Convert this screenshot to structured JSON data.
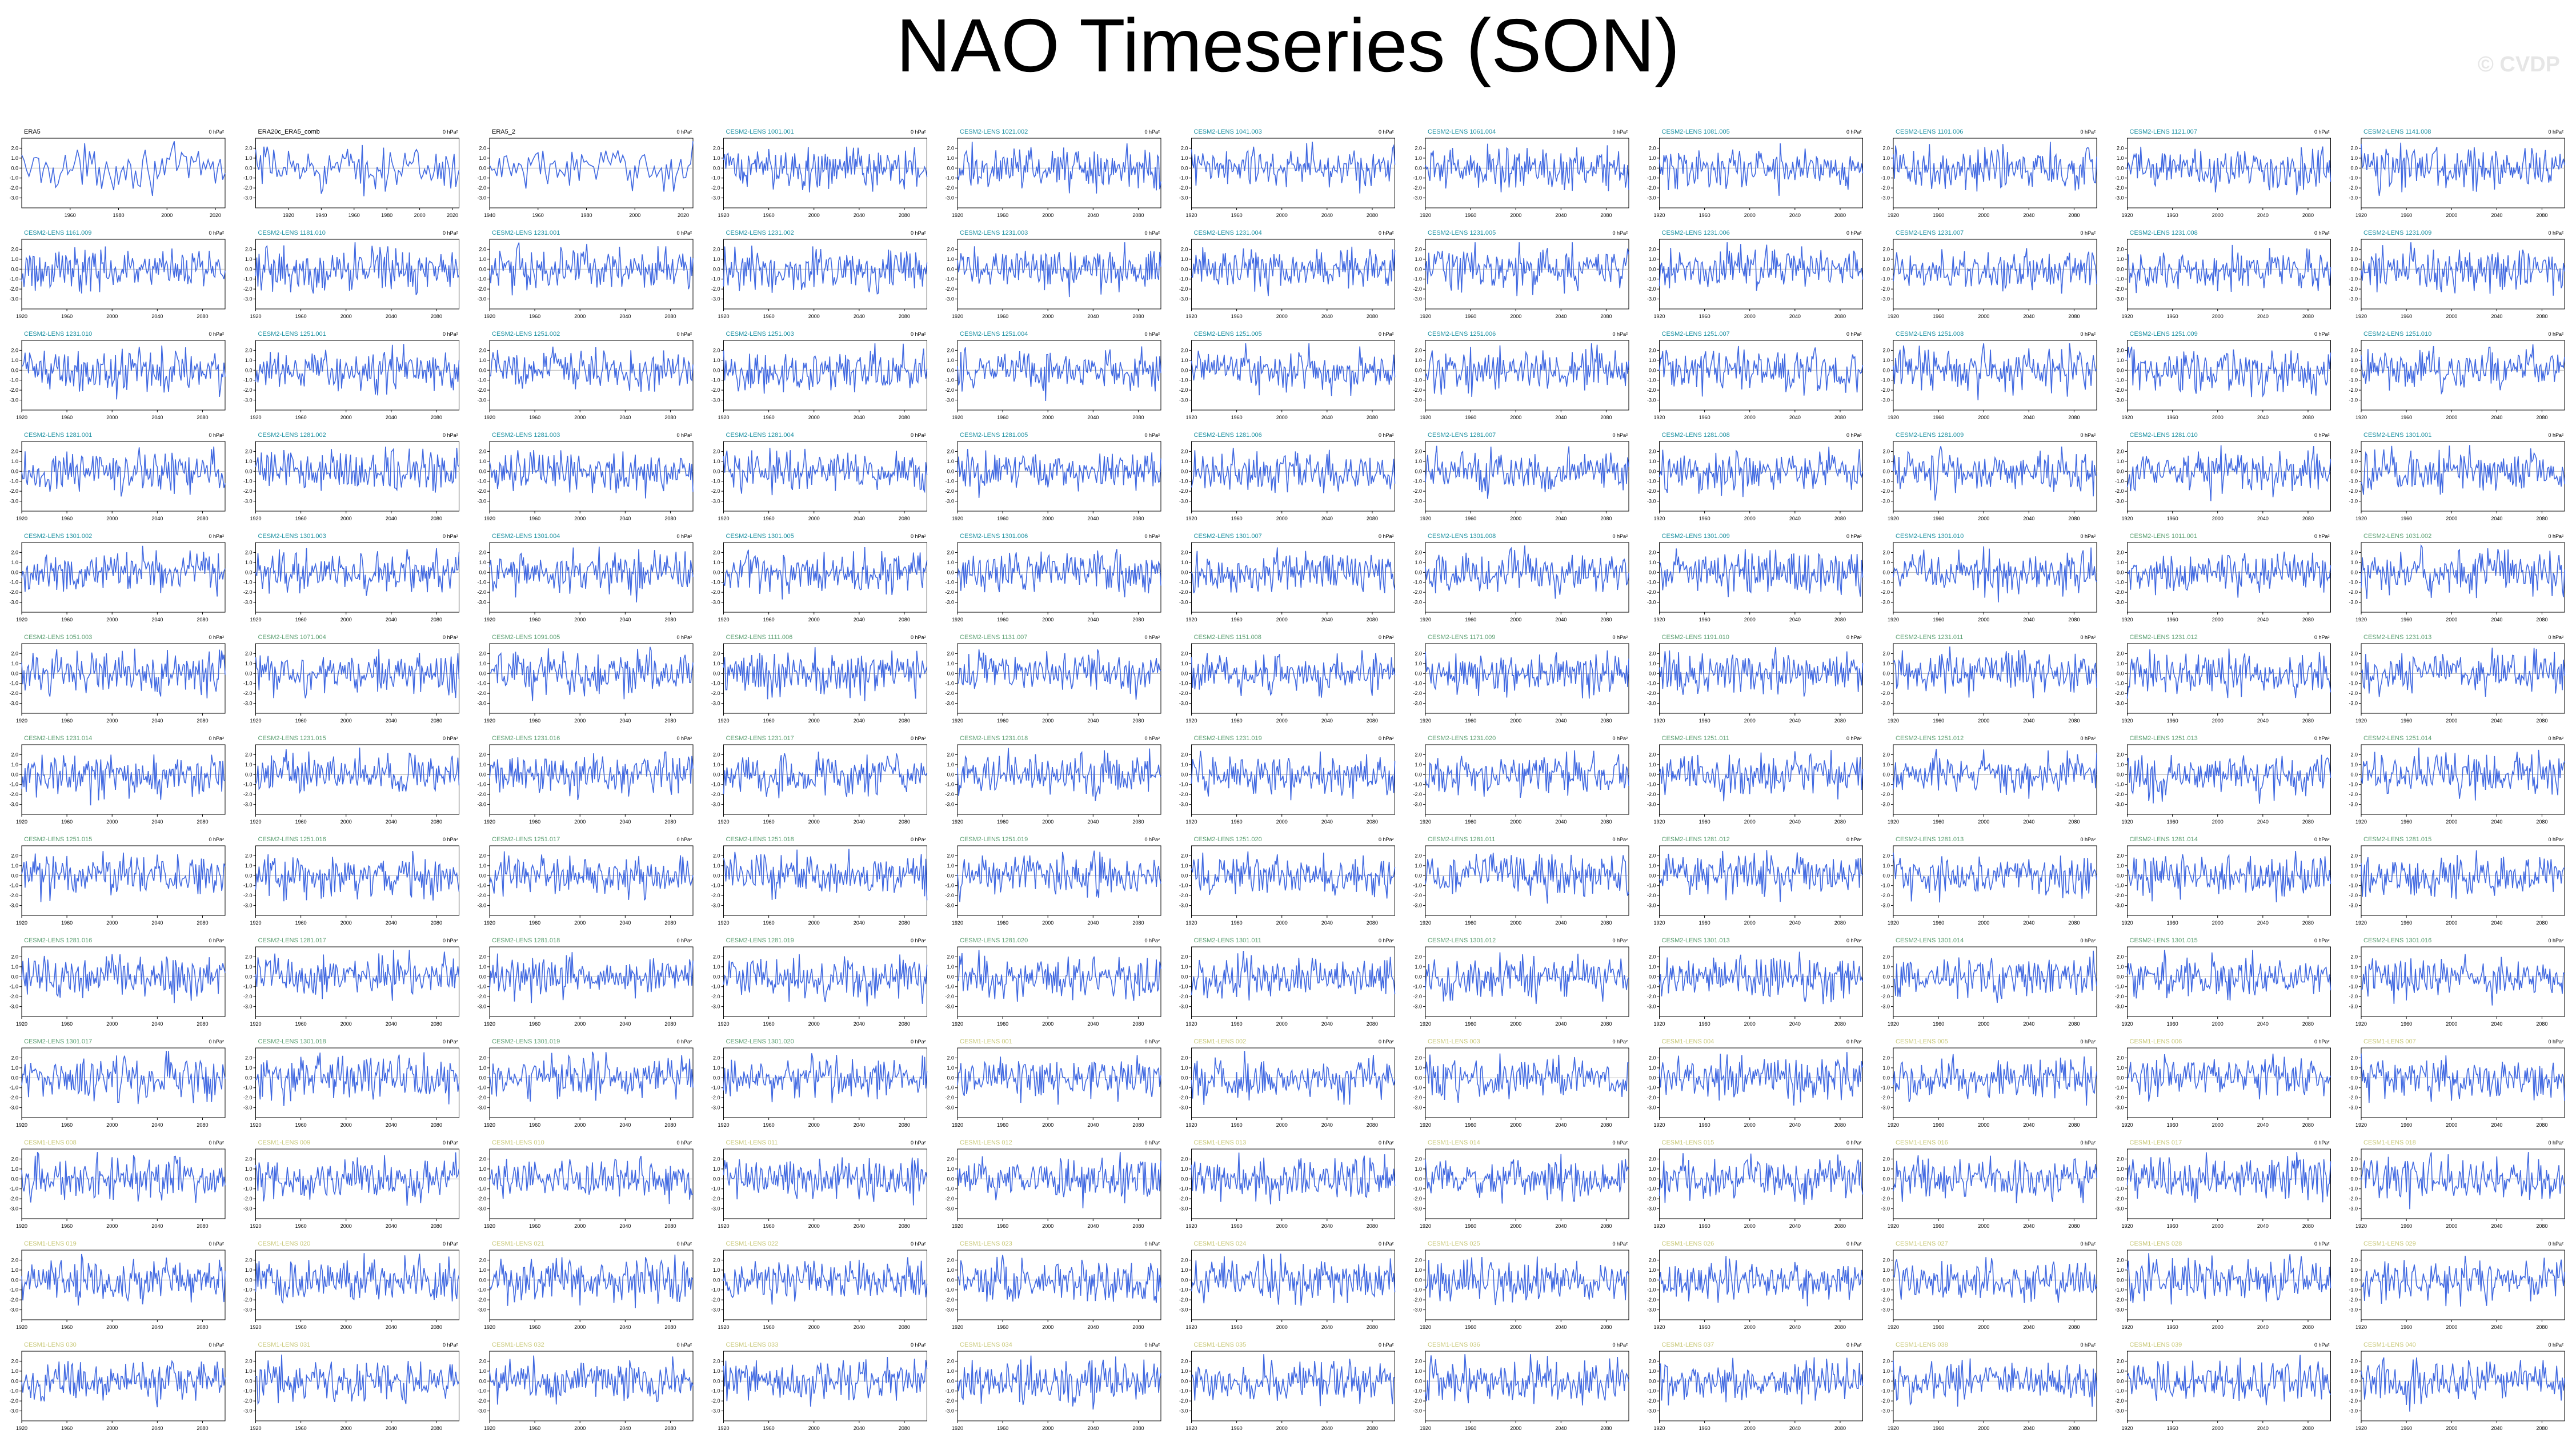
{
  "title": "NAO Timeseries (SON)",
  "watermark": "© CVDP",
  "colors": {
    "line": "#4169E1",
    "frame": "#000000",
    "obs_label": "#000000",
    "cesm2_label": "#1a8fa0",
    "cesm2_label_later": "#5a9e70",
    "cesm1_label": "#c8c878"
  },
  "chart_data": {
    "type": "line",
    "units_label": "0 hPa²",
    "panels_per_row": 11,
    "shared_y_ticks": [
      "2.0",
      "1.0",
      "0.0",
      "-1.0",
      "-2.0",
      "-3.0",
      "-4.0"
    ],
    "panels": [
      {
        "title": "ERA5",
        "group": "obs",
        "x_ticks": [
          "1960",
          "1980",
          "2000",
          "2020"
        ],
        "xlim": [
          1940,
          2024
        ],
        "ylim": [
          -4,
          3
        ]
      },
      {
        "title": "ERA20c_ERA5_comb",
        "group": "obs",
        "x_ticks": [
          "1920",
          "1940",
          "1960",
          "1980",
          "2000",
          "2020"
        ],
        "xlim": [
          1900,
          2024
        ],
        "ylim": [
          -4,
          3
        ]
      },
      {
        "title": "ERA5_2",
        "group": "obs",
        "x_ticks": [
          "1940",
          "1960",
          "1980",
          "2000",
          "2020"
        ],
        "xlim": [
          1940,
          2024
        ],
        "ylim": [
          -4,
          3
        ]
      },
      {
        "title": "CESM2-LENS 1001.001",
        "group": "cesm2"
      },
      {
        "title": "CESM2-LENS 1021.002",
        "group": "cesm2"
      },
      {
        "title": "CESM2-LENS 1041.003",
        "group": "cesm2"
      },
      {
        "title": "CESM2-LENS 1061.004",
        "group": "cesm2"
      },
      {
        "title": "CESM2-LENS 1081.005",
        "group": "cesm2"
      },
      {
        "title": "CESM2-LENS 1101.006",
        "group": "cesm2"
      },
      {
        "title": "CESM2-LENS 1121.007",
        "group": "cesm2"
      },
      {
        "title": "CESM2-LENS 1141.008",
        "group": "cesm2"
      },
      {
        "title": "CESM2-LENS 1161.009",
        "group": "cesm2"
      },
      {
        "title": "CESM2-LENS 1181.010",
        "group": "cesm2"
      },
      {
        "title": "CESM2-LENS 1231.001",
        "group": "cesm2"
      },
      {
        "title": "CESM2-LENS 1231.002",
        "group": "cesm2"
      },
      {
        "title": "CESM2-LENS 1231.003",
        "group": "cesm2"
      },
      {
        "title": "CESM2-LENS 1231.004",
        "group": "cesm2"
      },
      {
        "title": "CESM2-LENS 1231.005",
        "group": "cesm2"
      },
      {
        "title": "CESM2-LENS 1231.006",
        "group": "cesm2"
      },
      {
        "title": "CESM2-LENS 1231.007",
        "group": "cesm2"
      },
      {
        "title": "CESM2-LENS 1231.008",
        "group": "cesm2"
      },
      {
        "title": "CESM2-LENS 1231.009",
        "group": "cesm2"
      },
      {
        "title": "CESM2-LENS 1231.010",
        "group": "cesm2"
      },
      {
        "title": "CESM2-LENS 1251.001",
        "group": "cesm2"
      },
      {
        "title": "CESM2-LENS 1251.002",
        "group": "cesm2"
      },
      {
        "title": "CESM2-LENS 1251.003",
        "group": "cesm2"
      },
      {
        "title": "CESM2-LENS 1251.004",
        "group": "cesm2"
      },
      {
        "title": "CESM2-LENS 1251.005",
        "group": "cesm2"
      },
      {
        "title": "CESM2-LENS 1251.006",
        "group": "cesm2"
      },
      {
        "title": "CESM2-LENS 1251.007",
        "group": "cesm2"
      },
      {
        "title": "CESM2-LENS 1251.008",
        "group": "cesm2"
      },
      {
        "title": "CESM2-LENS 1251.009",
        "group": "cesm2"
      },
      {
        "title": "CESM2-LENS 1251.010",
        "group": "cesm2"
      },
      {
        "title": "CESM2-LENS 1281.001",
        "group": "cesm2"
      },
      {
        "title": "CESM2-LENS 1281.002",
        "group": "cesm2"
      },
      {
        "title": "CESM2-LENS 1281.003",
        "group": "cesm2"
      },
      {
        "title": "CESM2-LENS 1281.004",
        "group": "cesm2"
      },
      {
        "title": "CESM2-LENS 1281.005",
        "group": "cesm2"
      },
      {
        "title": "CESM2-LENS 1281.006",
        "group": "cesm2"
      },
      {
        "title": "CESM2-LENS 1281.007",
        "group": "cesm2"
      },
      {
        "title": "CESM2-LENS 1281.008",
        "group": "cesm2"
      },
      {
        "title": "CESM2-LENS 1281.009",
        "group": "cesm2"
      },
      {
        "title": "CESM2-LENS 1281.010",
        "group": "cesm2"
      },
      {
        "title": "CESM2-LENS 1301.001",
        "group": "cesm2"
      },
      {
        "title": "CESM2-LENS 1301.002",
        "group": "cesm2"
      },
      {
        "title": "CESM2-LENS 1301.003",
        "group": "cesm2"
      },
      {
        "title": "CESM2-LENS 1301.004",
        "group": "cesm2"
      },
      {
        "title": "CESM2-LENS 1301.005",
        "group": "cesm2"
      },
      {
        "title": "CESM2-LENS 1301.006",
        "group": "cesm2"
      },
      {
        "title": "CESM2-LENS 1301.007",
        "group": "cesm2"
      },
      {
        "title": "CESM2-LENS 1301.008",
        "group": "cesm2"
      },
      {
        "title": "CESM2-LENS 1301.009",
        "group": "cesm2"
      },
      {
        "title": "CESM2-LENS 1301.010",
        "group": "cesm2"
      },
      {
        "title": "CESM2-LENS 1011.001",
        "group": "cesm2b"
      },
      {
        "title": "CESM2-LENS 1031.002",
        "group": "cesm2b"
      },
      {
        "title": "CESM2-LENS 1051.003",
        "group": "cesm2b"
      },
      {
        "title": "CESM2-LENS 1071.004",
        "group": "cesm2b"
      },
      {
        "title": "CESM2-LENS 1091.005",
        "group": "cesm2b"
      },
      {
        "title": "CESM2-LENS 1111.006",
        "group": "cesm2b"
      },
      {
        "title": "CESM2-LENS 1131.007",
        "group": "cesm2b"
      },
      {
        "title": "CESM2-LENS 1151.008",
        "group": "cesm2b"
      },
      {
        "title": "CESM2-LENS 1171.009",
        "group": "cesm2b"
      },
      {
        "title": "CESM2-LENS 1191.010",
        "group": "cesm2b"
      },
      {
        "title": "CESM2-LENS 1231.011",
        "group": "cesm2b"
      },
      {
        "title": "CESM2-LENS 1231.012",
        "group": "cesm2b"
      },
      {
        "title": "CESM2-LENS 1231.013",
        "group": "cesm2b"
      },
      {
        "title": "CESM2-LENS 1231.014",
        "group": "cesm2b"
      },
      {
        "title": "CESM2-LENS 1231.015",
        "group": "cesm2b"
      },
      {
        "title": "CESM2-LENS 1231.016",
        "group": "cesm2b"
      },
      {
        "title": "CESM2-LENS 1231.017",
        "group": "cesm2b"
      },
      {
        "title": "CESM2-LENS 1231.018",
        "group": "cesm2b"
      },
      {
        "title": "CESM2-LENS 1231.019",
        "group": "cesm2b"
      },
      {
        "title": "CESM2-LENS 1231.020",
        "group": "cesm2b"
      },
      {
        "title": "CESM2-LENS 1251.011",
        "group": "cesm2b"
      },
      {
        "title": "CESM2-LENS 1251.012",
        "group": "cesm2b"
      },
      {
        "title": "CESM2-LENS 1251.013",
        "group": "cesm2b"
      },
      {
        "title": "CESM2-LENS 1251.014",
        "group": "cesm2b"
      },
      {
        "title": "CESM2-LENS 1251.015",
        "group": "cesm2b"
      },
      {
        "title": "CESM2-LENS 1251.016",
        "group": "cesm2b"
      },
      {
        "title": "CESM2-LENS 1251.017",
        "group": "cesm2b"
      },
      {
        "title": "CESM2-LENS 1251.018",
        "group": "cesm2b"
      },
      {
        "title": "CESM2-LENS 1251.019",
        "group": "cesm2b"
      },
      {
        "title": "CESM2-LENS 1251.020",
        "group": "cesm2b"
      },
      {
        "title": "CESM2-LENS 1281.011",
        "group": "cesm2b"
      },
      {
        "title": "CESM2-LENS 1281.012",
        "group": "cesm2b"
      },
      {
        "title": "CESM2-LENS 1281.013",
        "group": "cesm2b"
      },
      {
        "title": "CESM2-LENS 1281.014",
        "group": "cesm2b"
      },
      {
        "title": "CESM2-LENS 1281.015",
        "group": "cesm2b"
      },
      {
        "title": "CESM2-LENS 1281.016",
        "group": "cesm2b"
      },
      {
        "title": "CESM2-LENS 1281.017",
        "group": "cesm2b"
      },
      {
        "title": "CESM2-LENS 1281.018",
        "group": "cesm2b"
      },
      {
        "title": "CESM2-LENS 1281.019",
        "group": "cesm2b"
      },
      {
        "title": "CESM2-LENS 1281.020",
        "group": "cesm2b"
      },
      {
        "title": "CESM2-LENS 1301.011",
        "group": "cesm2b"
      },
      {
        "title": "CESM2-LENS 1301.012",
        "group": "cesm2b"
      },
      {
        "title": "CESM2-LENS 1301.013",
        "group": "cesm2b"
      },
      {
        "title": "CESM2-LENS 1301.014",
        "group": "cesm2b"
      },
      {
        "title": "CESM2-LENS 1301.015",
        "group": "cesm2b"
      },
      {
        "title": "CESM2-LENS 1301.016",
        "group": "cesm2b"
      },
      {
        "title": "CESM2-LENS 1301.017",
        "group": "cesm2b"
      },
      {
        "title": "CESM2-LENS 1301.018",
        "group": "cesm2b"
      },
      {
        "title": "CESM2-LENS 1301.019",
        "group": "cesm2b"
      },
      {
        "title": "CESM2-LENS 1301.020",
        "group": "cesm2b"
      },
      {
        "title": "CESM1-LENS 001",
        "group": "cesm1"
      },
      {
        "title": "CESM1-LENS 002",
        "group": "cesm1"
      },
      {
        "title": "CESM1-LENS 003",
        "group": "cesm1"
      },
      {
        "title": "CESM1-LENS 004",
        "group": "cesm1"
      },
      {
        "title": "CESM1-LENS 005",
        "group": "cesm1"
      },
      {
        "title": "CESM1-LENS 006",
        "group": "cesm1"
      },
      {
        "title": "CESM1-LENS 007",
        "group": "cesm1"
      },
      {
        "title": "CESM1-LENS 008",
        "group": "cesm1"
      },
      {
        "title": "CESM1-LENS 009",
        "group": "cesm1"
      },
      {
        "title": "CESM1-LENS 010",
        "group": "cesm1"
      },
      {
        "title": "CESM1-LENS 011",
        "group": "cesm1"
      },
      {
        "title": "CESM1-LENS 012",
        "group": "cesm1"
      },
      {
        "title": "CESM1-LENS 013",
        "group": "cesm1"
      },
      {
        "title": "CESM1-LENS 014",
        "group": "cesm1"
      },
      {
        "title": "CESM1-LENS 015",
        "group": "cesm1"
      },
      {
        "title": "CESM1-LENS 016",
        "group": "cesm1"
      },
      {
        "title": "CESM1-LENS 017",
        "group": "cesm1"
      },
      {
        "title": "CESM1-LENS 018",
        "group": "cesm1"
      },
      {
        "title": "CESM1-LENS 019",
        "group": "cesm1"
      },
      {
        "title": "CESM1-LENS 020",
        "group": "cesm1"
      },
      {
        "title": "CESM1-LENS 021",
        "group": "cesm1"
      },
      {
        "title": "CESM1-LENS 022",
        "group": "cesm1"
      },
      {
        "title": "CESM1-LENS 023",
        "group": "cesm1"
      },
      {
        "title": "CESM1-LENS 024",
        "group": "cesm1"
      },
      {
        "title": "CESM1-LENS 025",
        "group": "cesm1"
      },
      {
        "title": "CESM1-LENS 026",
        "group": "cesm1"
      },
      {
        "title": "CESM1-LENS 027",
        "group": "cesm1"
      },
      {
        "title": "CESM1-LENS 028",
        "group": "cesm1"
      },
      {
        "title": "CESM1-LENS 029",
        "group": "cesm1"
      },
      {
        "title": "CESM1-LENS 030",
        "group": "cesm1"
      },
      {
        "title": "CESM1-LENS 031",
        "group": "cesm1"
      },
      {
        "title": "CESM1-LENS 032",
        "group": "cesm1"
      },
      {
        "title": "CESM1-LENS 033",
        "group": "cesm1"
      },
      {
        "title": "CESM1-LENS 034",
        "group": "cesm1"
      },
      {
        "title": "CESM1-LENS 035",
        "group": "cesm1"
      },
      {
        "title": "CESM1-LENS 036",
        "group": "cesm1"
      },
      {
        "title": "CESM1-LENS 037",
        "group": "cesm1"
      },
      {
        "title": "CESM1-LENS 038",
        "group": "cesm1"
      },
      {
        "title": "CESM1-LENS 039",
        "group": "cesm1"
      },
      {
        "title": "CESM1-LENS 040",
        "group": "cesm1"
      }
    ],
    "model_defaults": {
      "x_ticks": [
        "1920",
        "1960",
        "2000",
        "2040",
        "2080"
      ],
      "xlim": [
        1920,
        2100
      ],
      "y_ticks": [
        "2.0",
        "1.0",
        "0.0",
        "-1.0",
        "-2.0",
        "-3.0"
      ],
      "ylim": [
        -4,
        3
      ]
    }
  }
}
